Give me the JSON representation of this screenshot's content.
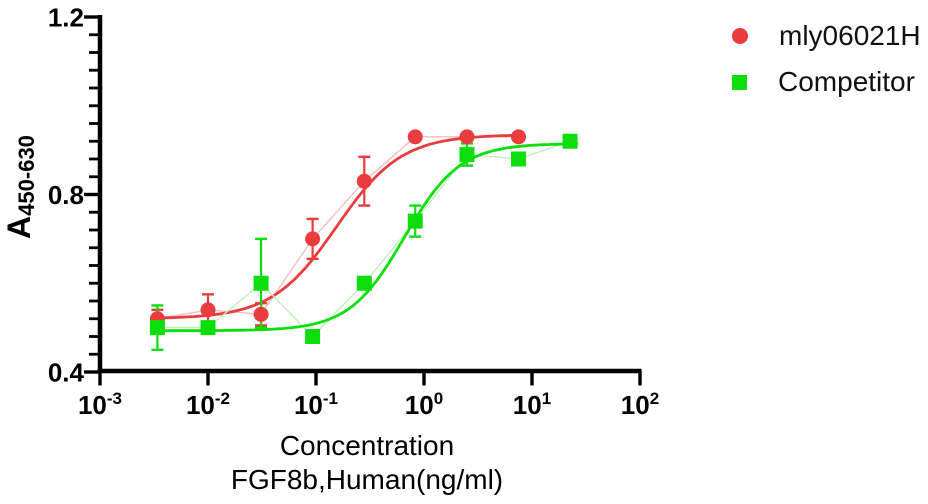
{
  "chart_data": {
    "type": "line",
    "title": "",
    "xlabel_line1": "Concentration",
    "xlabel_line2": "FGF8b,Human(ng/ml)",
    "ylabel_base": "A",
    "ylabel_subscript": "450-630",
    "x_scale": "log10",
    "xlim": [
      0.001,
      100
    ],
    "x_tick_base": "10",
    "x_tick_exponents": [
      -3,
      -2,
      -1,
      0,
      1,
      2
    ],
    "ylim": [
      0.4,
      1.2
    ],
    "y_ticks": [
      0.4,
      0.8,
      1.2
    ],
    "y_tick_labels": [
      "0.4",
      "0.8",
      "1.2"
    ],
    "y_minor_step": 0.04,
    "grid": "off",
    "legend_position": "top-right",
    "axis_color": "#000000",
    "series": [
      {
        "name": "mly06021H",
        "marker": "circle",
        "color": "#EA3C3E",
        "color_light": "#F6BDBA",
        "x": [
          0.0034,
          0.01,
          0.031,
          0.093,
          0.28,
          0.83,
          2.5,
          7.5
        ],
        "y": [
          0.52,
          0.54,
          0.53,
          0.7,
          0.83,
          0.93,
          0.93,
          0.93
        ],
        "y_err": [
          0.02,
          0.035,
          0.025,
          0.045,
          0.055,
          0,
          0,
          0
        ],
        "fit": {
          "model": "4PL",
          "bottom": 0.52,
          "top": 0.935,
          "ec50": 0.155,
          "hill": 1.45,
          "x_start": 0.0034,
          "x_end": 7.5
        }
      },
      {
        "name": "Competitor",
        "marker": "square",
        "color": "#0CDE0C",
        "color_light": "#C0EFBA",
        "x": [
          0.0034,
          0.01,
          0.031,
          0.093,
          0.28,
          0.83,
          2.5,
          7.5,
          22.5
        ],
        "y": [
          0.5,
          0.5,
          0.6,
          0.48,
          0.6,
          0.74,
          0.89,
          0.88,
          0.92
        ],
        "y_err": [
          0.05,
          0,
          0.1,
          0,
          0,
          0.035,
          0.025,
          0,
          0
        ],
        "fit": {
          "model": "4PL",
          "bottom": 0.493,
          "top": 0.915,
          "ec50": 0.66,
          "hill": 1.7,
          "x_start": 0.0034,
          "x_end": 26
        }
      }
    ]
  }
}
